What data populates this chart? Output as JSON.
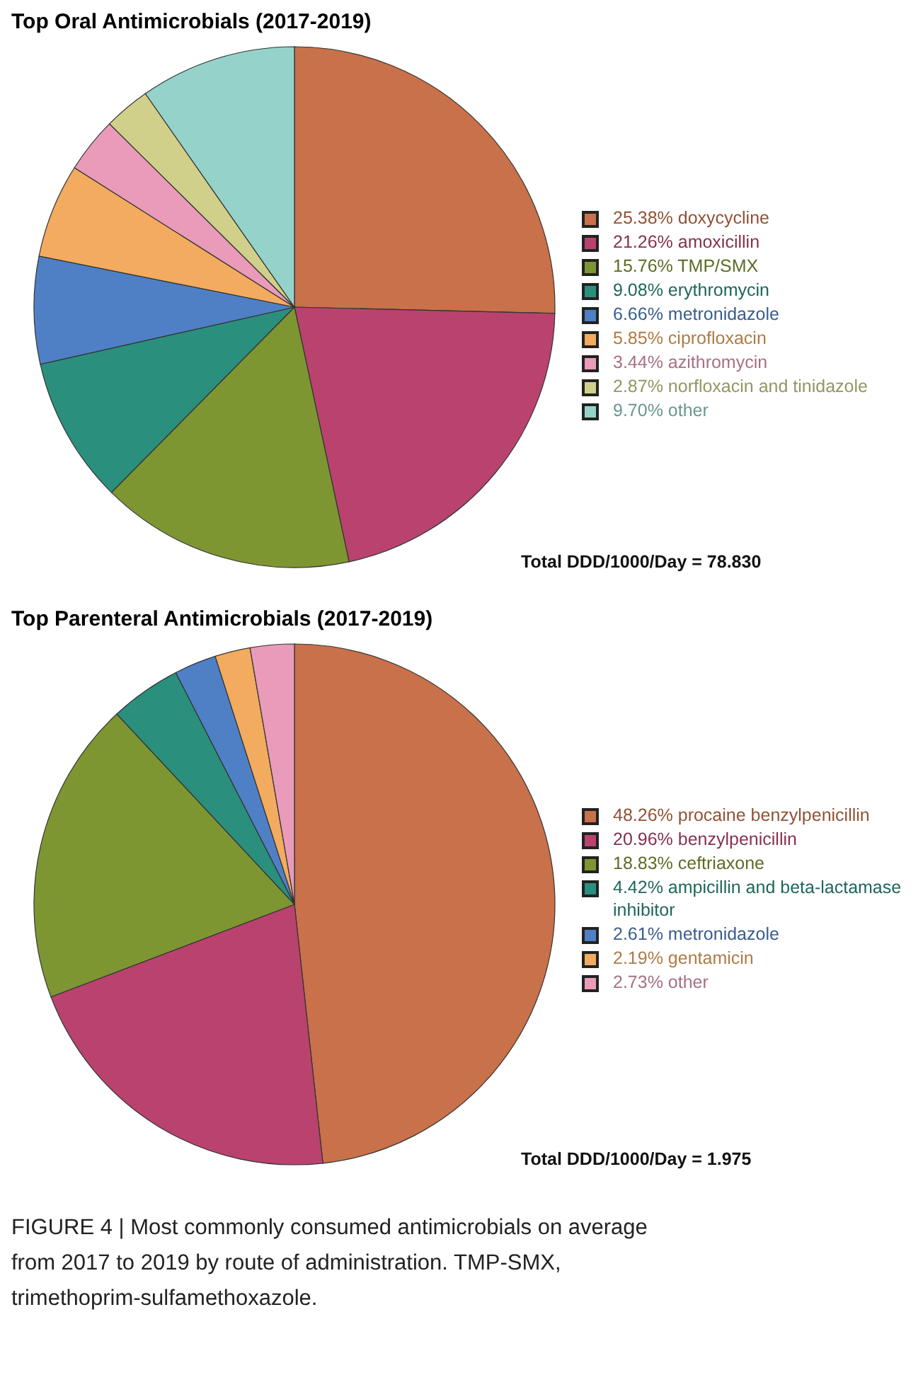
{
  "chart_data": [
    {
      "type": "pie",
      "title": "Top Oral Antimicrobials (2017-2019)",
      "categories": [
        "doxycycline",
        "amoxicillin",
        "TMP/SMX",
        "erythromycin",
        "metronidazole",
        "ciprofloxacin",
        "azithromycin",
        "norfloxacin and tinidazole",
        "other"
      ],
      "values": [
        25.38,
        21.26,
        15.76,
        9.08,
        6.66,
        5.85,
        3.44,
        2.87,
        9.7
      ],
      "value_labels": [
        "25.38%",
        "21.26%",
        "15.76%",
        "9.08%",
        "6.66%",
        "5.85%",
        "3.44%",
        "2.87%",
        "9.70%"
      ],
      "colors": [
        "#c8714a",
        "#b9436e",
        "#7e9632",
        "#2a8f7c",
        "#4f80c6",
        "#f3ab5f",
        "#e99bb9",
        "#d0d08a",
        "#95d2ca"
      ],
      "legend": "right",
      "annotations": [
        "Total DDD/1000/Day = 78.830"
      ]
    },
    {
      "type": "pie",
      "title": "Top Parenteral Antimicrobials (2017-2019)",
      "categories": [
        "procaine benzylpenicillin",
        "benzylpenicillin",
        "ceftriaxone",
        "ampicillin and beta-lactamase inhibitor",
        "metronidazole",
        "gentamicin",
        "other"
      ],
      "values": [
        48.26,
        20.96,
        18.83,
        4.42,
        2.61,
        2.19,
        2.73
      ],
      "value_labels": [
        "48.26%",
        "20.96%",
        "18.83%",
        "4.42%",
        "2.61%",
        "2.19%",
        "2.73%"
      ],
      "colors": [
        "#c8714a",
        "#b9436e",
        "#7e9632",
        "#2a8f7c",
        "#4f80c6",
        "#f3ab5f",
        "#e99bb9"
      ],
      "legend": "right",
      "annotations": [
        "Total DDD/1000/Day = 1.975",
        "FIGURE 4 | Most commonly consumed antimicrobials on average from 2017 to 2019 by route of administration. TMP-SMX, trimethoprim-sulfamethoxazole."
      ]
    }
  ]
}
